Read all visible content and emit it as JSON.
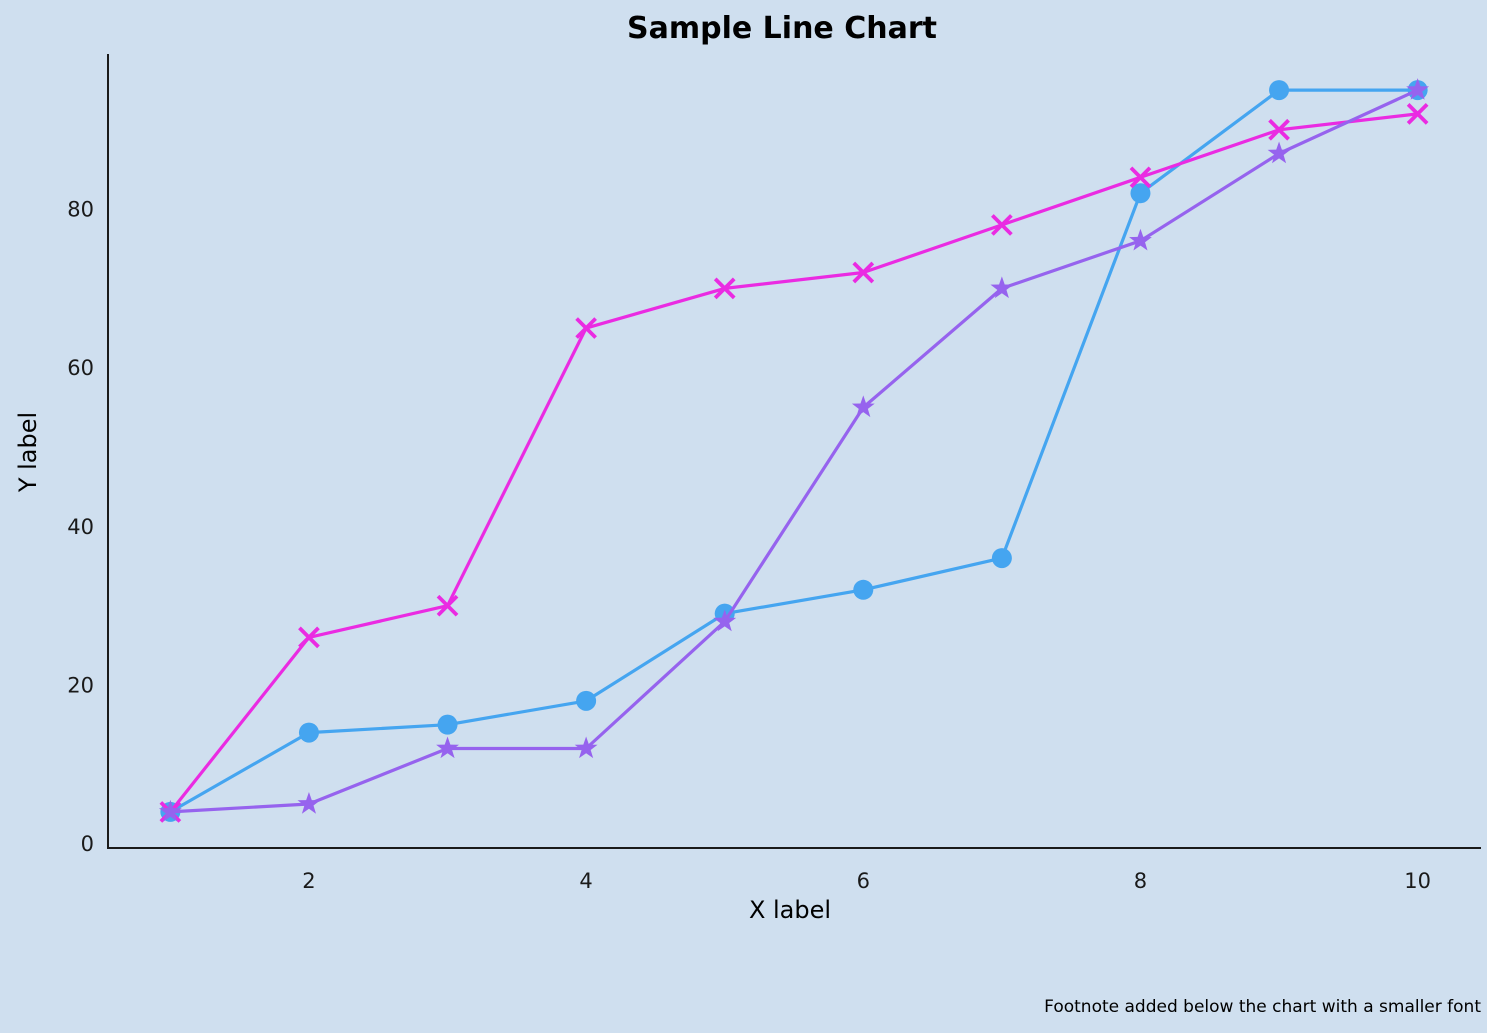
{
  "title": "Sample Line Chart",
  "footnote": "Footnote added below the chart with a smaller font",
  "colors": {
    "background": "#cfdfef",
    "axis": "#1a1a1a",
    "text": "#1a1a1a",
    "series_blue": "#45a5f0",
    "series_magenta": "#ea2be2",
    "series_purple": "#9663ee"
  },
  "chart_data": {
    "type": "line",
    "title": "Sample Line Chart",
    "xlabel": "X label",
    "ylabel": "Y label",
    "footnote": "Footnote added below the chart with a smaller font",
    "x": [
      1,
      2,
      3,
      4,
      5,
      6,
      7,
      8,
      9,
      10
    ],
    "series": [
      {
        "marker": "circle",
        "color": "#45a5f0",
        "values": [
          4,
          14,
          15,
          18,
          29,
          32,
          36,
          82,
          95,
          95
        ]
      },
      {
        "marker": "x",
        "color": "#ea2be2",
        "values": [
          4,
          26,
          30,
          65,
          70,
          72,
          78,
          84,
          90,
          92
        ]
      },
      {
        "marker": "star",
        "color": "#9663ee",
        "values": [
          4,
          5,
          12,
          12,
          28,
          55,
          70,
          76,
          87,
          95
        ]
      }
    ],
    "x_ticks": [
      2,
      4,
      6,
      8,
      10
    ],
    "y_ticks": [
      0,
      20,
      40,
      60,
      80
    ],
    "xlim": [
      0.55,
      10.45
    ],
    "ylim": [
      -0.55,
      99.55
    ],
    "grid": false,
    "legend": "none"
  }
}
